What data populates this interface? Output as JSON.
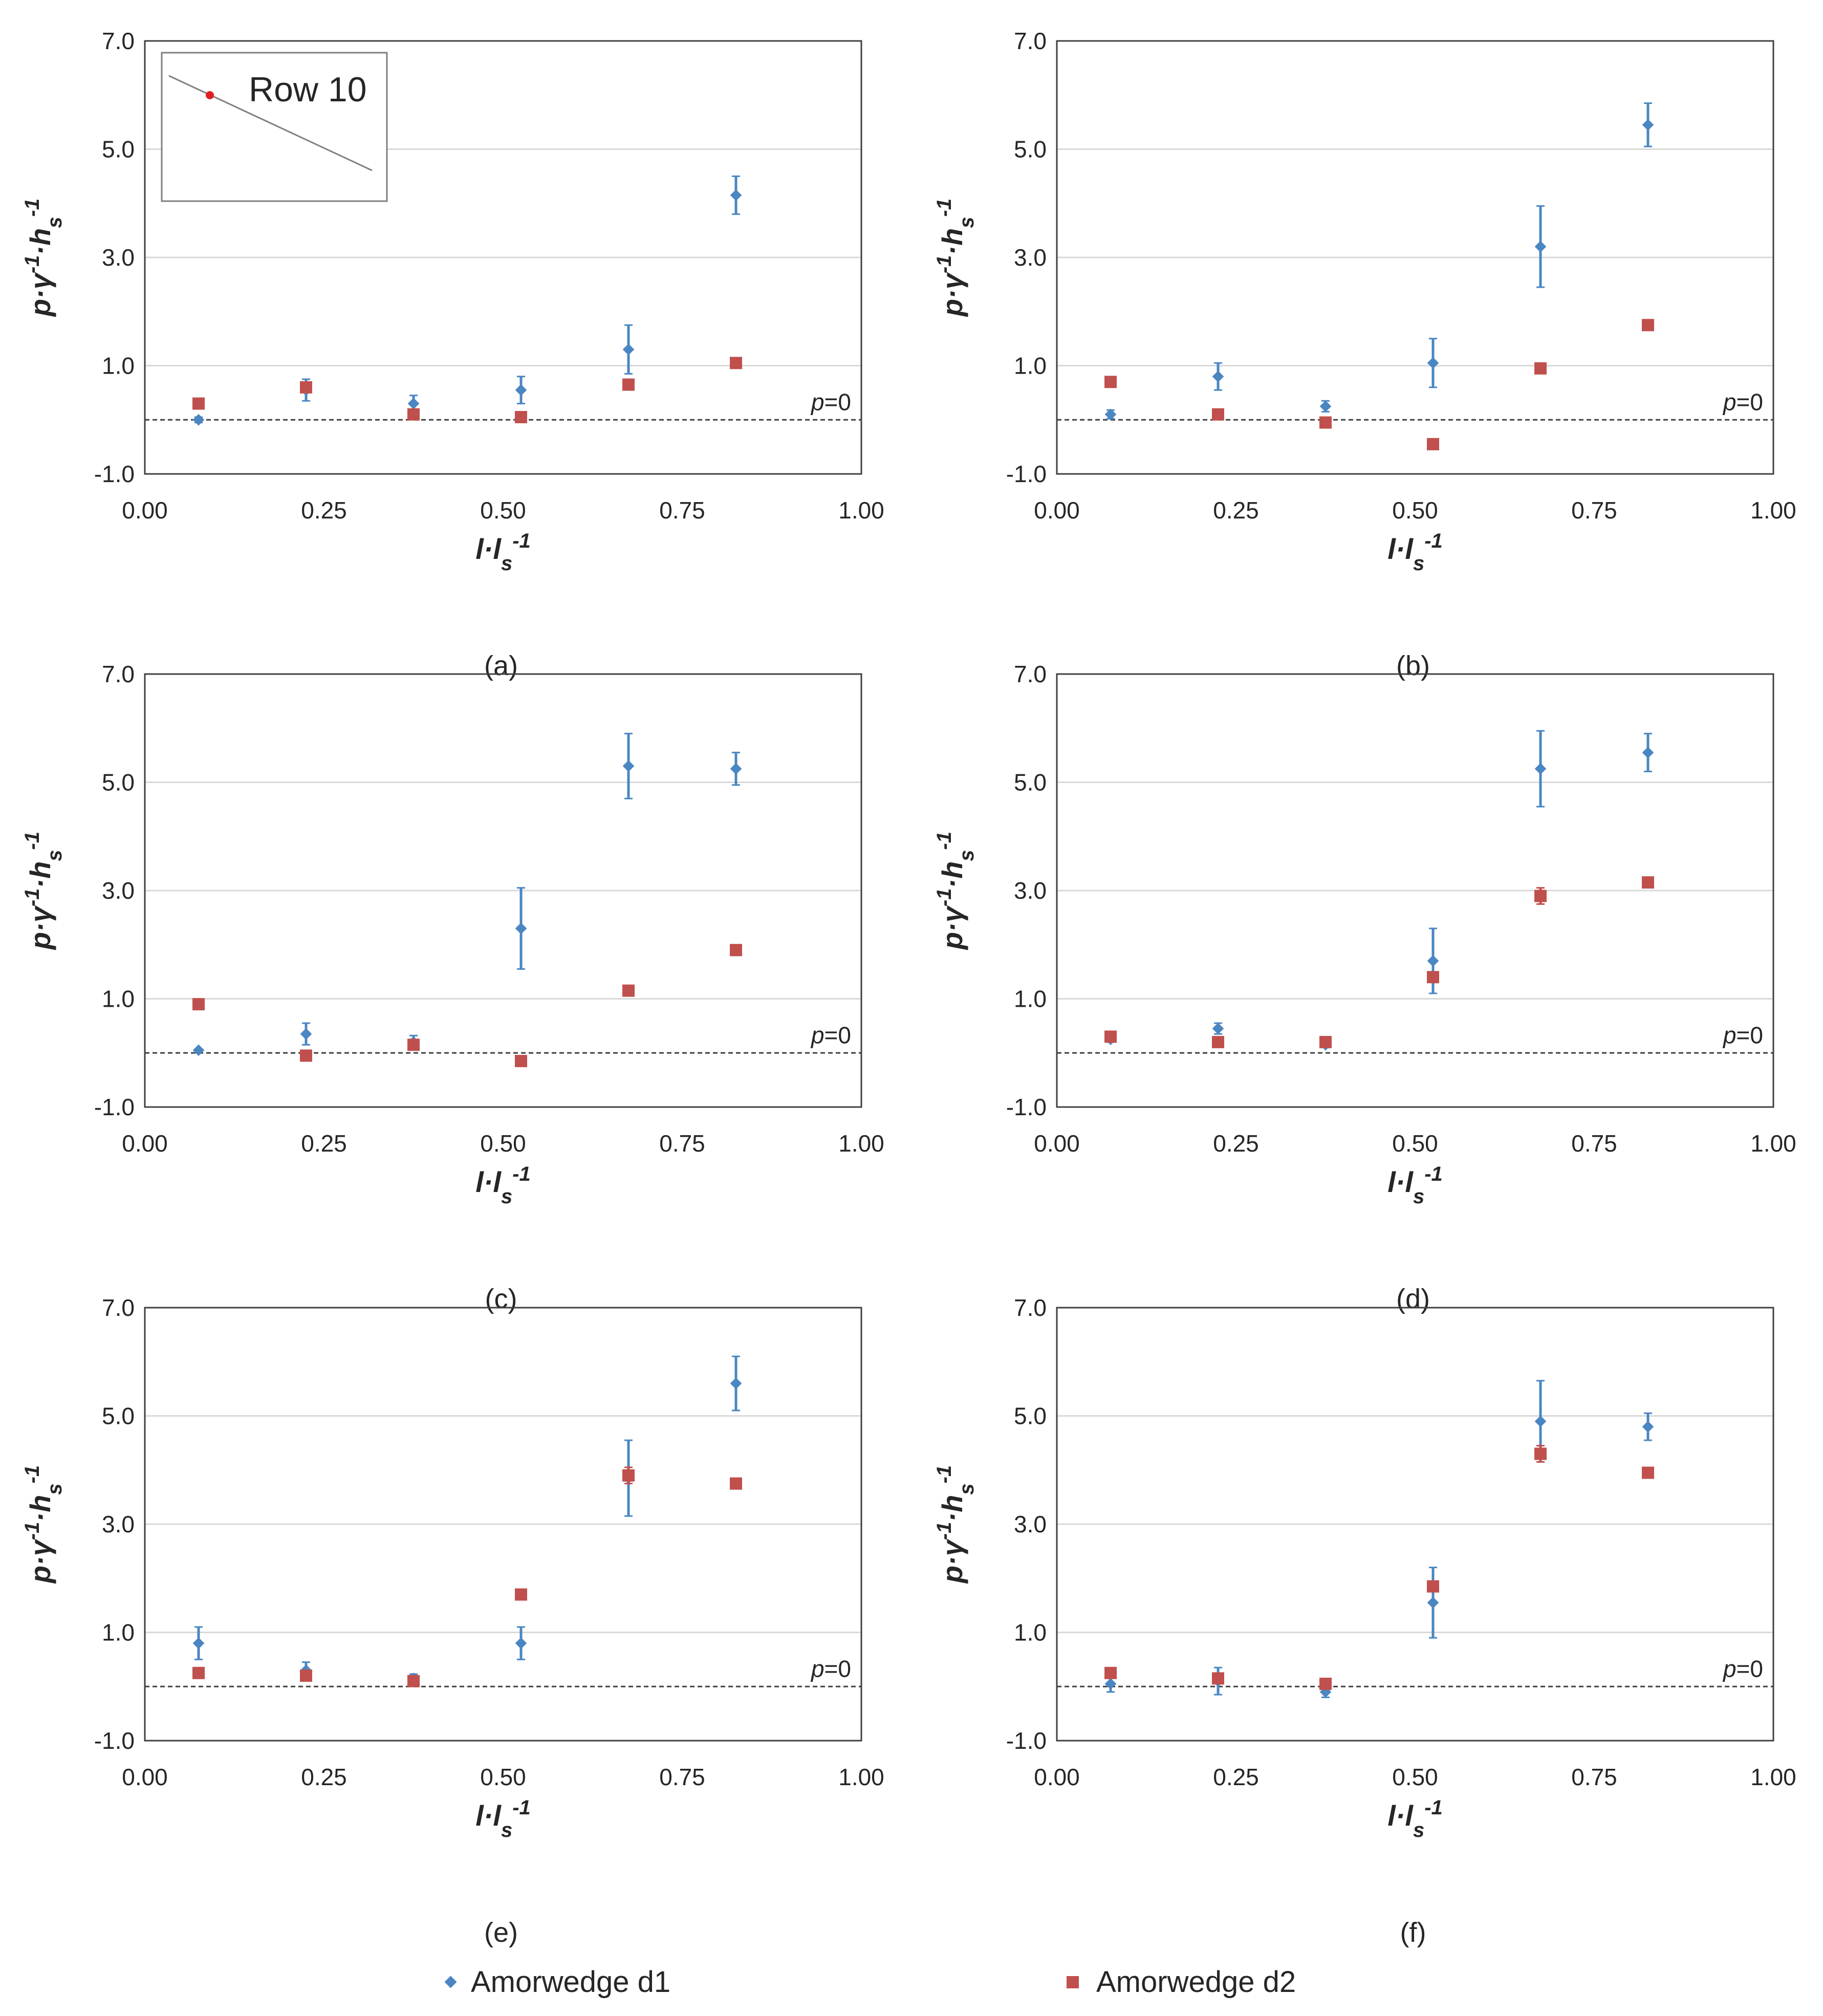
{
  "colors": {
    "d1": "#4a86c2",
    "d2": "#c0504d",
    "grid": "#d9d9d9",
    "axis": "#404040",
    "text": "#262626"
  },
  "legend": {
    "d1": "Amorwedge d1",
    "d2": "Amorwedge d2"
  },
  "inset": {
    "label": "Row 10"
  },
  "chart_data": [
    {
      "type": "scatter",
      "panel": "(a)",
      "xlabel": "l·ls-1",
      "ylabel": "p·γ-1·hs-1",
      "xlim": [
        0,
        1
      ],
      "ylim": [
        -1,
        7
      ],
      "xticks": [
        "0.00",
        "0.25",
        "0.50",
        "0.75",
        "1.00"
      ],
      "yticks": [
        "-1.0",
        "1.0",
        "3.0",
        "5.0",
        "7.0"
      ],
      "reference_line": {
        "y": 0,
        "label": "p=0"
      },
      "x": [
        0.075,
        0.225,
        0.375,
        0.525,
        0.675,
        0.825
      ],
      "series": [
        {
          "name": "Amorwedge d1",
          "values": [
            0.0,
            0.55,
            0.3,
            0.55,
            1.3,
            4.15
          ],
          "errors": [
            0.05,
            0.2,
            0.15,
            0.25,
            0.45,
            0.35
          ]
        },
        {
          "name": "Amorwedge d2",
          "values": [
            0.3,
            0.6,
            0.1,
            0.05,
            0.65,
            1.05
          ],
          "errors": [
            0.03,
            0.05,
            0.03,
            0.03,
            0.05,
            0.05
          ]
        }
      ]
    },
    {
      "type": "scatter",
      "panel": "(b)",
      "xlabel": "l·ls-1",
      "ylabel": "p·γ-1·hs-1",
      "xlim": [
        0,
        1
      ],
      "ylim": [
        -1,
        7
      ],
      "xticks": [
        "0.00",
        "0.25",
        "0.50",
        "0.75",
        "1.00"
      ],
      "yticks": [
        "-1.0",
        "1.0",
        "3.0",
        "5.0",
        "7.0"
      ],
      "reference_line": {
        "y": 0,
        "label": "p=0"
      },
      "x": [
        0.075,
        0.225,
        0.375,
        0.525,
        0.675,
        0.825
      ],
      "series": [
        {
          "name": "Amorwedge d1",
          "values": [
            0.1,
            0.8,
            0.25,
            1.05,
            3.2,
            5.45
          ],
          "errors": [
            0.08,
            0.25,
            0.1,
            0.45,
            0.75,
            0.4
          ]
        },
        {
          "name": "Amorwedge d2",
          "values": [
            0.7,
            0.1,
            -0.05,
            -0.45,
            0.95,
            1.75
          ],
          "errors": [
            0.03,
            0.03,
            0.03,
            0.03,
            0.03,
            0.03
          ]
        }
      ]
    },
    {
      "type": "scatter",
      "panel": "(c)",
      "xlabel": "l·ls-1",
      "ylabel": "p·γ-1·hs-1",
      "xlim": [
        0,
        1
      ],
      "ylim": [
        -1,
        7
      ],
      "xticks": [
        "0.00",
        "0.25",
        "0.50",
        "0.75",
        "1.00"
      ],
      "yticks": [
        "-1.0",
        "1.0",
        "3.0",
        "5.0",
        "7.0"
      ],
      "reference_line": {
        "y": 0,
        "label": "p=0"
      },
      "x": [
        0.075,
        0.225,
        0.375,
        0.525,
        0.675,
        0.825
      ],
      "series": [
        {
          "name": "Amorwedge d1",
          "values": [
            0.05,
            0.35,
            0.2,
            2.3,
            5.3,
            5.25
          ],
          "errors": [
            0.03,
            0.2,
            0.12,
            0.75,
            0.6,
            0.3
          ]
        },
        {
          "name": "Amorwedge d2",
          "values": [
            0.9,
            -0.05,
            0.15,
            -0.15,
            1.15,
            1.9
          ],
          "errors": [
            0.03,
            0.03,
            0.03,
            0.03,
            0.03,
            0.03
          ]
        }
      ]
    },
    {
      "type": "scatter",
      "panel": "(d)",
      "xlabel": "l·ls-1",
      "ylabel": "p·γ-1·hs-1",
      "xlim": [
        0,
        1
      ],
      "ylim": [
        -1,
        7
      ],
      "xticks": [
        "0.00",
        "0.25",
        "0.50",
        "0.75",
        "1.00"
      ],
      "yticks": [
        "-1.0",
        "1.0",
        "3.0",
        "5.0",
        "7.0"
      ],
      "reference_line": {
        "y": 0,
        "label": "p=0"
      },
      "x": [
        0.075,
        0.225,
        0.375,
        0.525,
        0.675,
        0.825
      ],
      "series": [
        {
          "name": "Amorwedge d1",
          "values": [
            0.25,
            0.45,
            0.15,
            1.7,
            5.25,
            5.55
          ],
          "errors": [
            0.05,
            0.1,
            0.05,
            0.6,
            0.7,
            0.35
          ]
        },
        {
          "name": "Amorwedge d2",
          "values": [
            0.3,
            0.2,
            0.2,
            1.4,
            2.9,
            3.15
          ],
          "errors": [
            0.03,
            0.03,
            0.03,
            0.08,
            0.15,
            0.05
          ]
        }
      ]
    },
    {
      "type": "scatter",
      "panel": "(e)",
      "xlabel": "l·ls-1",
      "ylabel": "p·γ-1·hs-1",
      "xlim": [
        0,
        1
      ],
      "ylim": [
        -1,
        7
      ],
      "xticks": [
        "0.00",
        "0.25",
        "0.50",
        "0.75",
        "1.00"
      ],
      "yticks": [
        "-1.0",
        "1.0",
        "3.0",
        "5.0",
        "7.0"
      ],
      "reference_line": {
        "y": 0,
        "label": "p=0"
      },
      "x": [
        0.075,
        0.225,
        0.375,
        0.525,
        0.675,
        0.825
      ],
      "series": [
        {
          "name": "Amorwedge d1",
          "values": [
            0.8,
            0.3,
            0.15,
            0.8,
            3.85,
            5.6
          ],
          "errors": [
            0.3,
            0.15,
            0.08,
            0.3,
            0.7,
            0.5
          ]
        },
        {
          "name": "Amorwedge d2",
          "values": [
            0.25,
            0.2,
            0.1,
            1.7,
            3.9,
            3.75
          ],
          "errors": [
            0.03,
            0.03,
            0.03,
            0.03,
            0.15,
            0.03
          ]
        }
      ]
    },
    {
      "type": "scatter",
      "panel": "(f)",
      "xlabel": "l·ls-1",
      "ylabel": "p·γ-1·hs-1",
      "xlim": [
        0,
        1
      ],
      "ylim": [
        -1,
        7
      ],
      "xticks": [
        "0.00",
        "0.25",
        "0.50",
        "0.75",
        "1.00"
      ],
      "yticks": [
        "-1.0",
        "1.0",
        "3.0",
        "5.0",
        "7.0"
      ],
      "reference_line": {
        "y": 0,
        "label": "p=0"
      },
      "x": [
        0.075,
        0.225,
        0.375,
        0.525,
        0.675,
        0.825
      ],
      "series": [
        {
          "name": "Amorwedge d1",
          "values": [
            0.05,
            0.1,
            -0.1,
            1.55,
            4.9,
            4.8
          ],
          "errors": [
            0.15,
            0.25,
            0.1,
            0.65,
            0.75,
            0.25
          ]
        },
        {
          "name": "Amorwedge d2",
          "values": [
            0.25,
            0.15,
            0.05,
            1.85,
            4.3,
            3.95
          ],
          "errors": [
            0.03,
            0.03,
            0.03,
            0.05,
            0.15,
            0.03
          ]
        }
      ]
    }
  ]
}
